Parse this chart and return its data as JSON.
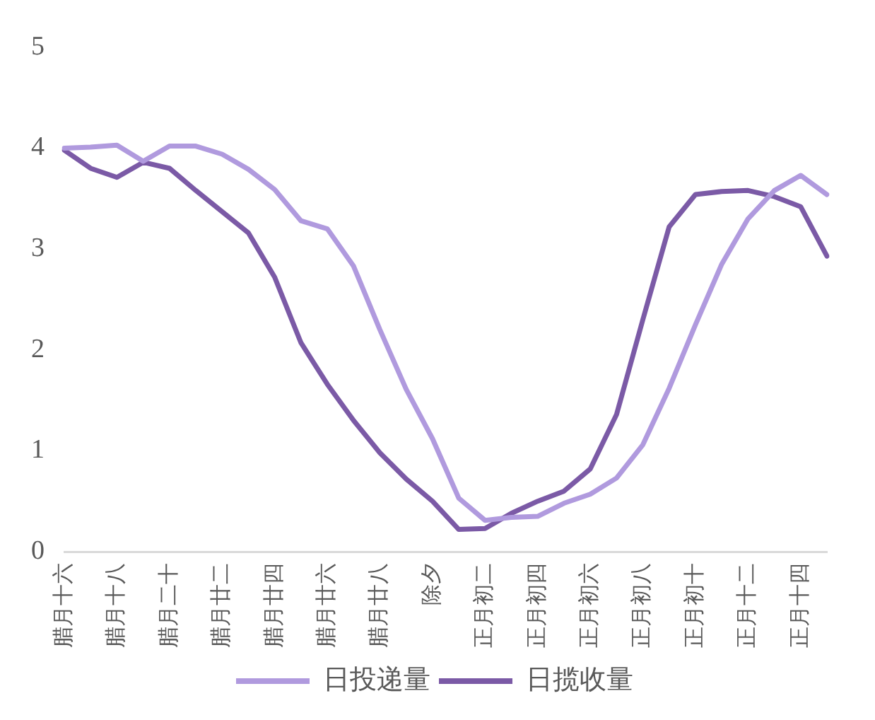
{
  "chart_data": {
    "type": "line",
    "categories": [
      "腊月十六",
      null,
      "腊月十八",
      null,
      "腊月二十",
      null,
      "腊月廿二",
      null,
      "腊月廿四",
      null,
      "腊月廿六",
      null,
      "腊月廿八",
      null,
      "除夕",
      null,
      "正月初二",
      null,
      "正月初四",
      null,
      "正月初六",
      null,
      "正月初八",
      null,
      "正月初十",
      null,
      "正月十二",
      null,
      "正月十四",
      null
    ],
    "series": [
      {
        "name": "日投递量",
        "color": "#b09ade",
        "values": [
          4.0,
          4.01,
          4.03,
          3.87,
          4.02,
          4.02,
          3.94,
          3.79,
          3.59,
          3.28,
          3.2,
          2.83,
          2.2,
          1.61,
          1.12,
          0.53,
          0.31,
          0.34,
          0.35,
          0.48,
          0.57,
          0.73,
          1.06,
          1.62,
          2.25,
          2.85,
          3.3,
          3.58,
          3.73,
          3.54
        ]
      },
      {
        "name": "日揽收量",
        "color": "#7b5aa6",
        "values": [
          3.98,
          3.8,
          3.71,
          3.86,
          3.8,
          3.58,
          3.37,
          3.16,
          2.72,
          2.07,
          1.66,
          1.3,
          0.98,
          0.72,
          0.5,
          0.22,
          0.23,
          0.38,
          0.5,
          0.6,
          0.82,
          1.36,
          2.3,
          3.22,
          3.54,
          3.57,
          3.58,
          3.52,
          3.42,
          2.93
        ]
      }
    ],
    "ylim": [
      0,
      5
    ],
    "yticks": [
      0,
      1,
      2,
      3,
      4,
      5
    ],
    "grid": false,
    "legend": "bottom",
    "marker": "none",
    "line_style": "solid"
  }
}
